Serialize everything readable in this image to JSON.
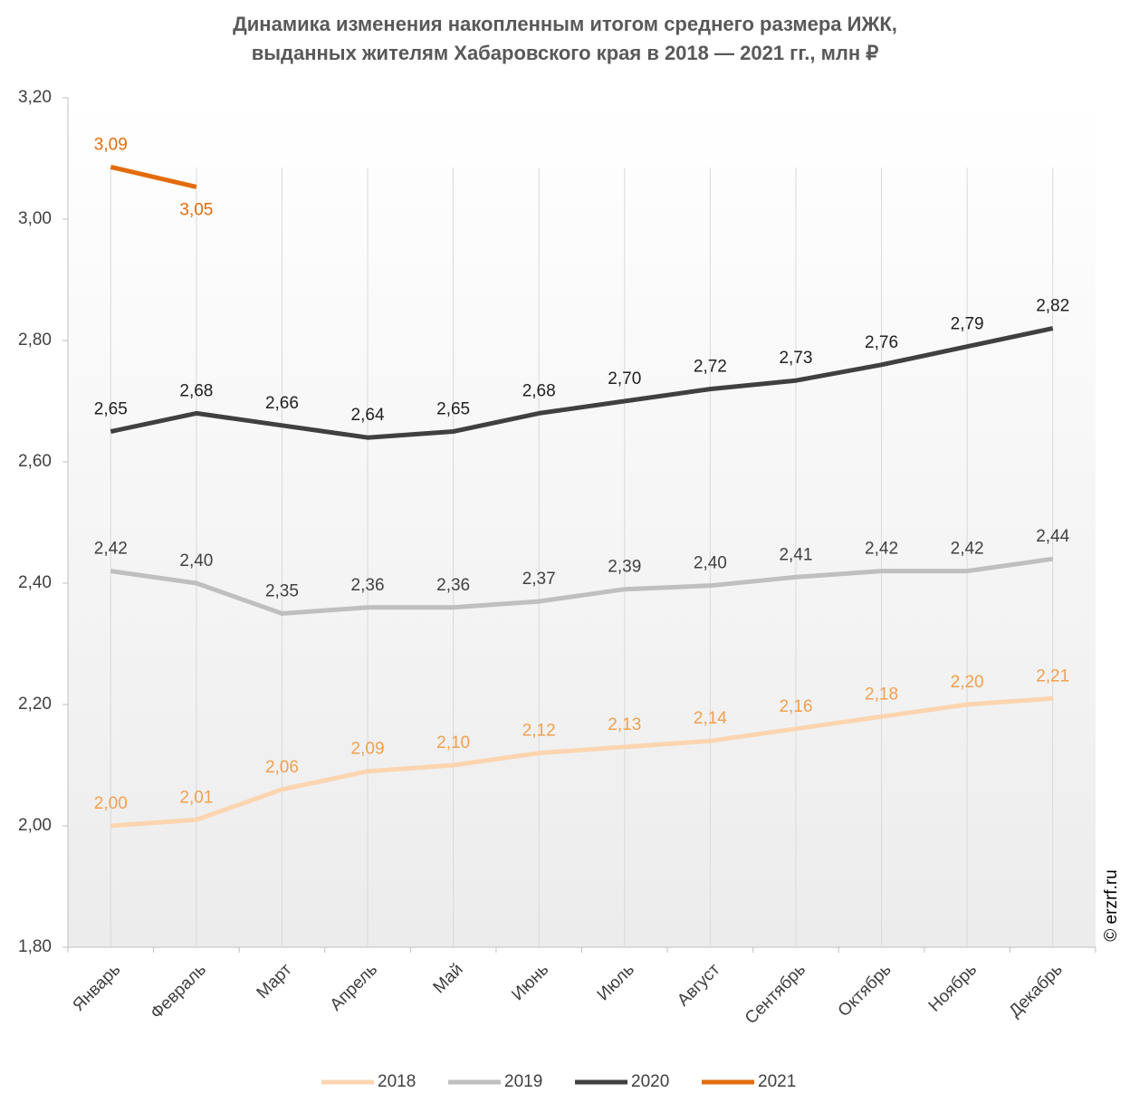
{
  "chart_data": {
    "type": "line",
    "title": "Динамика изменения накопленным итогом среднего размера ИЖК,",
    "subtitle": "выданных жителям Хабаровского края в 2018 — 2021 гг., млн ₽",
    "watermark": "© erzrf.ru",
    "categories": [
      "Январь",
      "Февраль",
      "Март",
      "Апрель",
      "Май",
      "Июнь",
      "Июль",
      "Август",
      "Сентябрь",
      "Октябрь",
      "Ноябрь",
      "Декабрь"
    ],
    "ylim": [
      1.8,
      3.2
    ],
    "yticks": [
      {
        "value": 1.8,
        "label": "1,80"
      },
      {
        "value": 2.0,
        "label": "2,00"
      },
      {
        "value": 2.2,
        "label": "2,20"
      },
      {
        "value": 2.4,
        "label": "2,40"
      },
      {
        "value": 2.6,
        "label": "2,60"
      },
      {
        "value": 2.8,
        "label": "2,80"
      },
      {
        "value": 3.0,
        "label": "3,00"
      },
      {
        "value": 3.2,
        "label": "3,20"
      }
    ],
    "grid": true,
    "legend": "bottom",
    "series": [
      {
        "name": "2018",
        "color": "#fcd5b0",
        "label_color": "#f0a050",
        "values": [
          2.0,
          2.01,
          2.06,
          2.09,
          2.1,
          2.12,
          2.13,
          2.14,
          2.16,
          2.18,
          2.2,
          2.21
        ],
        "value_labels": [
          "2,00",
          "2,01",
          "2,06",
          "2,09",
          "2,10",
          "2,12",
          "2,13",
          "2,14",
          "2,16",
          "2,18",
          "2,20",
          "2,21"
        ]
      },
      {
        "name": "2019",
        "color": "#bfbfbf",
        "label_color": "#404040",
        "values": [
          2.42,
          2.4,
          2.35,
          2.36,
          2.36,
          2.37,
          2.39,
          2.396,
          2.41,
          2.42,
          2.42,
          2.44
        ],
        "value_labels": [
          "2,42",
          "2,40",
          "2,35",
          "2,36",
          "2,36",
          "2,37",
          "2,39",
          "2,40",
          "2,41",
          "2,42",
          "2,42",
          "2,44"
        ]
      },
      {
        "name": "2020",
        "color": "#404040",
        "label_color": "#202020",
        "values": [
          2.65,
          2.68,
          2.66,
          2.64,
          2.65,
          2.68,
          2.7,
          2.72,
          2.734,
          2.76,
          2.79,
          2.82
        ],
        "value_labels": [
          "2,65",
          "2,68",
          "2,66",
          "2,64",
          "2,65",
          "2,68",
          "2,70",
          "2,72",
          "2,73",
          "2,76",
          "2,79",
          "2,82"
        ]
      },
      {
        "name": "2021",
        "color": "#e36c0a",
        "label_color": "#e36c0a",
        "values": [
          3.086,
          3.053,
          null,
          null,
          null,
          null,
          null,
          null,
          null,
          null,
          null,
          null
        ],
        "value_labels": [
          "3,09",
          "3,05",
          null,
          null,
          null,
          null,
          null,
          null,
          null,
          null,
          null,
          null
        ]
      }
    ]
  }
}
